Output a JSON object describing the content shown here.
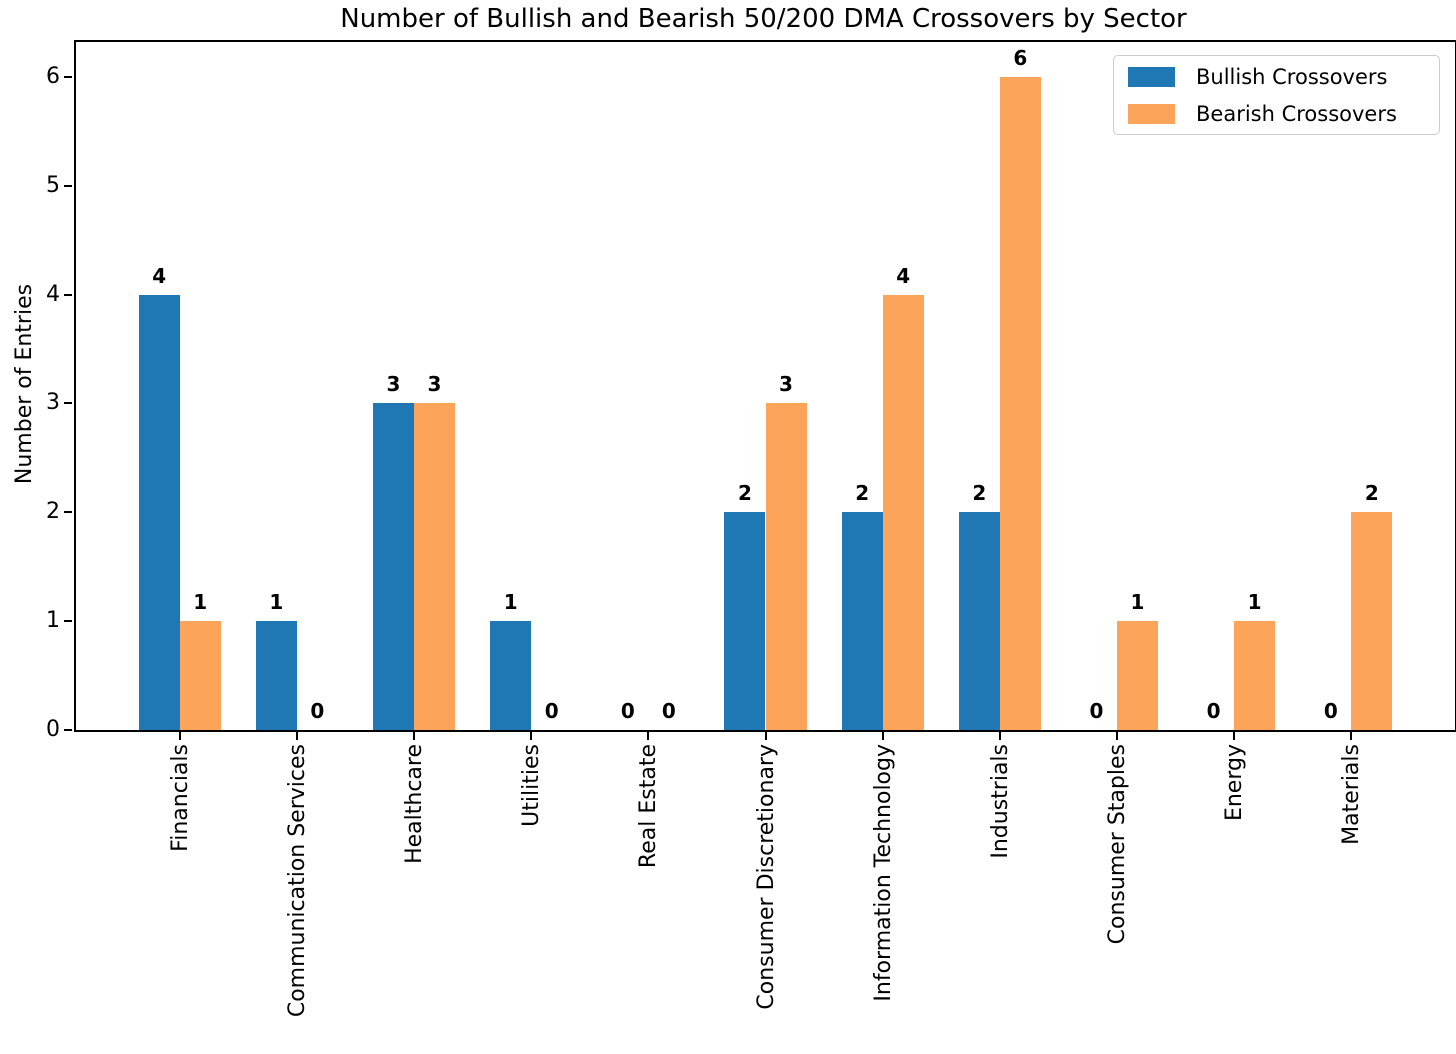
{
  "chart_data": {
    "type": "bar",
    "title": "Number of Bullish and Bearish 50/200 DMA Crossovers by Sector",
    "xlabel": "",
    "ylabel": "Number of Entries",
    "categories": [
      "Financials",
      "Communication Services",
      "Healthcare",
      "Utilities",
      "Real Estate",
      "Consumer Discretionary",
      "Information Technology",
      "Industrials",
      "Consumer Staples",
      "Energy",
      "Materials"
    ],
    "series": [
      {
        "name": "Bullish Crossovers",
        "color": "#1f77b4",
        "values": [
          4,
          1,
          3,
          1,
          0,
          2,
          2,
          2,
          0,
          0,
          0
        ]
      },
      {
        "name": "Bearish Crossovers",
        "color": "#fca55a",
        "values": [
          1,
          0,
          3,
          0,
          0,
          3,
          4,
          6,
          1,
          1,
          2
        ]
      }
    ],
    "yticks": [
      0,
      1,
      2,
      3,
      4,
      5,
      6
    ],
    "ylim": [
      0,
      6.32
    ],
    "bar_width_data_units": 0.35,
    "value_labels_shown": true,
    "grid": false,
    "legend_position": "upper right",
    "axis_color": "#000000",
    "background_color": "#ffffff"
  }
}
